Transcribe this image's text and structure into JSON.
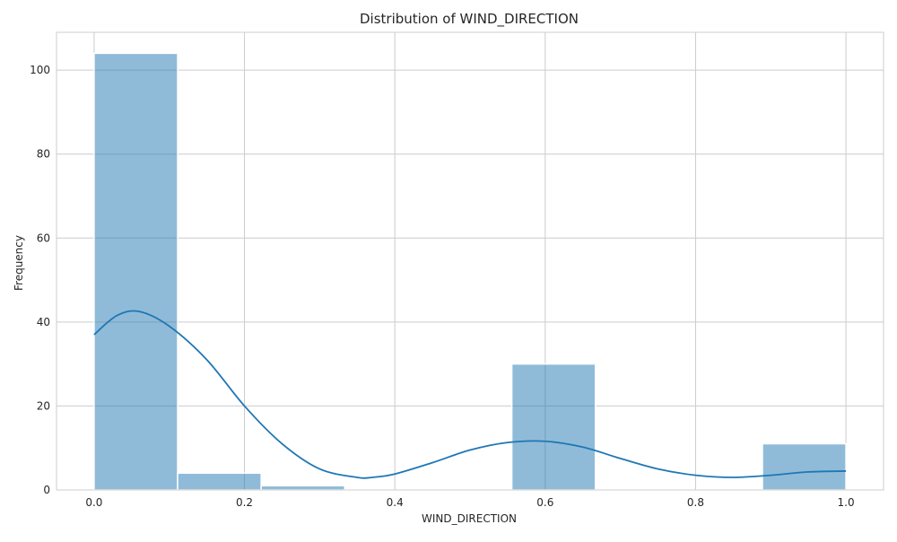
{
  "chart_data": {
    "type": "bar",
    "title": "Distribution of WIND_DIRECTION",
    "xlabel": "WIND_DIRECTION",
    "ylabel": "Frequency",
    "xlim": [
      -0.05,
      1.05
    ],
    "ylim": [
      0,
      109
    ],
    "x_ticks": [
      0.0,
      0.2,
      0.4,
      0.6,
      0.8,
      1.0
    ],
    "x_tick_labels": [
      "0.0",
      "0.2",
      "0.4",
      "0.6",
      "0.8",
      "1.0"
    ],
    "y_ticks": [
      0,
      20,
      40,
      60,
      80,
      100
    ],
    "y_tick_labels": [
      "0",
      "20",
      "40",
      "60",
      "80",
      "100"
    ],
    "grid": true,
    "bins": [
      {
        "x0": 0.0,
        "x1": 0.1111,
        "count": 104
      },
      {
        "x0": 0.1111,
        "x1": 0.2222,
        "count": 4
      },
      {
        "x0": 0.2222,
        "x1": 0.3333,
        "count": 1
      },
      {
        "x0": 0.3333,
        "x1": 0.4444,
        "count": 0
      },
      {
        "x0": 0.4444,
        "x1": 0.5556,
        "count": 0
      },
      {
        "x0": 0.5556,
        "x1": 0.6667,
        "count": 30
      },
      {
        "x0": 0.6667,
        "x1": 0.7778,
        "count": 0
      },
      {
        "x0": 0.7778,
        "x1": 0.8889,
        "count": 0
      },
      {
        "x0": 0.8889,
        "x1": 1.0,
        "count": 11
      }
    ],
    "kde": {
      "x": [
        0.0,
        0.03,
        0.06,
        0.1,
        0.15,
        0.2,
        0.25,
        0.3,
        0.35,
        0.37,
        0.4,
        0.45,
        0.5,
        0.55,
        0.6,
        0.65,
        0.7,
        0.75,
        0.8,
        0.85,
        0.9,
        0.95,
        1.0
      ],
      "y": [
        37,
        41.5,
        42.5,
        39,
        31,
        20,
        11,
        5,
        3,
        3,
        3.8,
        6.5,
        9.5,
        11.3,
        11.6,
        10.2,
        7.5,
        5,
        3.5,
        3,
        3.5,
        4.3,
        4.5
      ]
    },
    "colors": {
      "bar_fill": "#1f77b4",
      "bar_opacity": 0.5,
      "kde_line": "#1f77b4",
      "grid": "#cccccc",
      "frame": "#cccccc"
    }
  }
}
